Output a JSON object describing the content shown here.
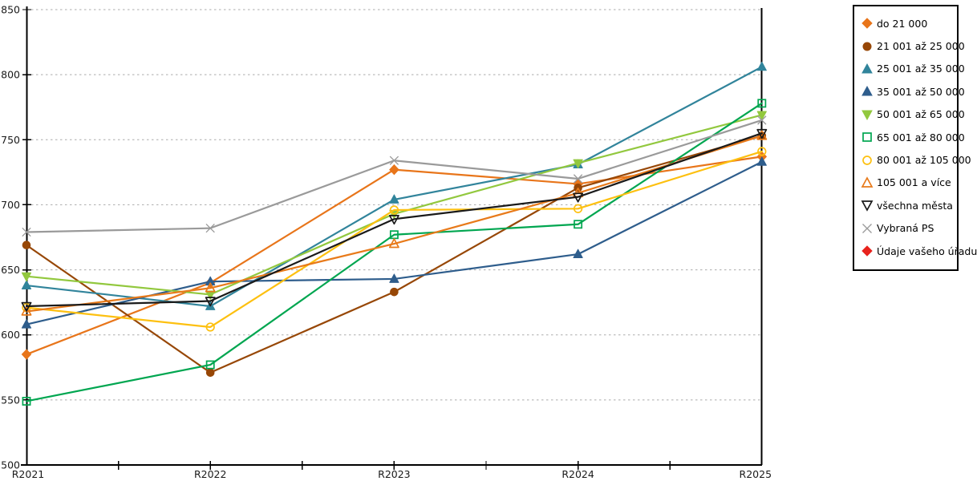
{
  "chart": {
    "background_color": "#ffffff",
    "axis_color": "#000000",
    "gridline_color": "#ababab",
    "tick_label_color": "#1a1a1a",
    "x_axis_labels": [
      "R2021",
      "R2022",
      "R2023",
      "R2024",
      "R2025"
    ],
    "y_axis_labels": [
      "500",
      "550",
      "600",
      "650",
      "700",
      "750",
      "800",
      "850"
    ]
  },
  "chart_data": {
    "type": "line",
    "title": "",
    "xlabel": "",
    "ylabel": "",
    "x": [
      "R2021",
      "R2022",
      "R2023",
      "R2024",
      "R2025"
    ],
    "ylim": [
      500,
      850
    ],
    "ytick_step": 50,
    "grid": "horizontal-dotted",
    "legend_position": "right",
    "series": [
      {
        "name": "do 21 000",
        "color": "#e8751a",
        "marker": "diamond",
        "marker_fill": "solid",
        "values": [
          585,
          640,
          727,
          716,
          737
        ]
      },
      {
        "name": "21 001 až 25 000",
        "color": "#974706",
        "marker": "circle",
        "marker_fill": "solid",
        "values": [
          669,
          571,
          633,
          713,
          753
        ]
      },
      {
        "name": "25 001 až 35 000",
        "color": "#31849b",
        "marker": "triangle-up",
        "marker_fill": "solid",
        "values": [
          638,
          622,
          704,
          731,
          806
        ]
      },
      {
        "name": "35 001 až 50 000",
        "color": "#2e5d8c",
        "marker": "triangle-up",
        "marker_fill": "solid",
        "values": [
          608,
          641,
          643,
          662,
          733
        ]
      },
      {
        "name": "50 001 až 65 000",
        "color": "#92c83e",
        "marker": "triangle-down",
        "marker_fill": "solid",
        "values": [
          645,
          631,
          693,
          732,
          769
        ]
      },
      {
        "name": "65 001 až 80 000",
        "color": "#00a650",
        "marker": "square",
        "marker_fill": "open",
        "values": [
          549,
          577,
          677,
          685,
          778
        ]
      },
      {
        "name": "80 001 až 105 000",
        "color": "#fdc010",
        "marker": "circle",
        "marker_fill": "open",
        "values": [
          621,
          606,
          696,
          697,
          741
        ]
      },
      {
        "name": "105 001 a více",
        "color": "#e87a1a",
        "marker": "triangle-up",
        "marker_fill": "open",
        "values": [
          618,
          636,
          670,
          709,
          753
        ]
      },
      {
        "name": "všechna města",
        "color": "#1a1a1a",
        "marker": "triangle-down",
        "marker_fill": "open",
        "values": [
          622,
          626,
          689,
          706,
          755
        ]
      },
      {
        "name": "Vybraná PS",
        "color": "#9a9a9a",
        "marker": "x",
        "marker_fill": "open",
        "values": [
          679,
          682,
          734,
          720,
          765
        ]
      },
      {
        "name": "Údaje vašeho úřadu",
        "color": "#e8231d",
        "marker": "diamond",
        "marker_fill": "solid",
        "values": [
          null,
          null,
          null,
          null,
          null
        ]
      }
    ]
  }
}
